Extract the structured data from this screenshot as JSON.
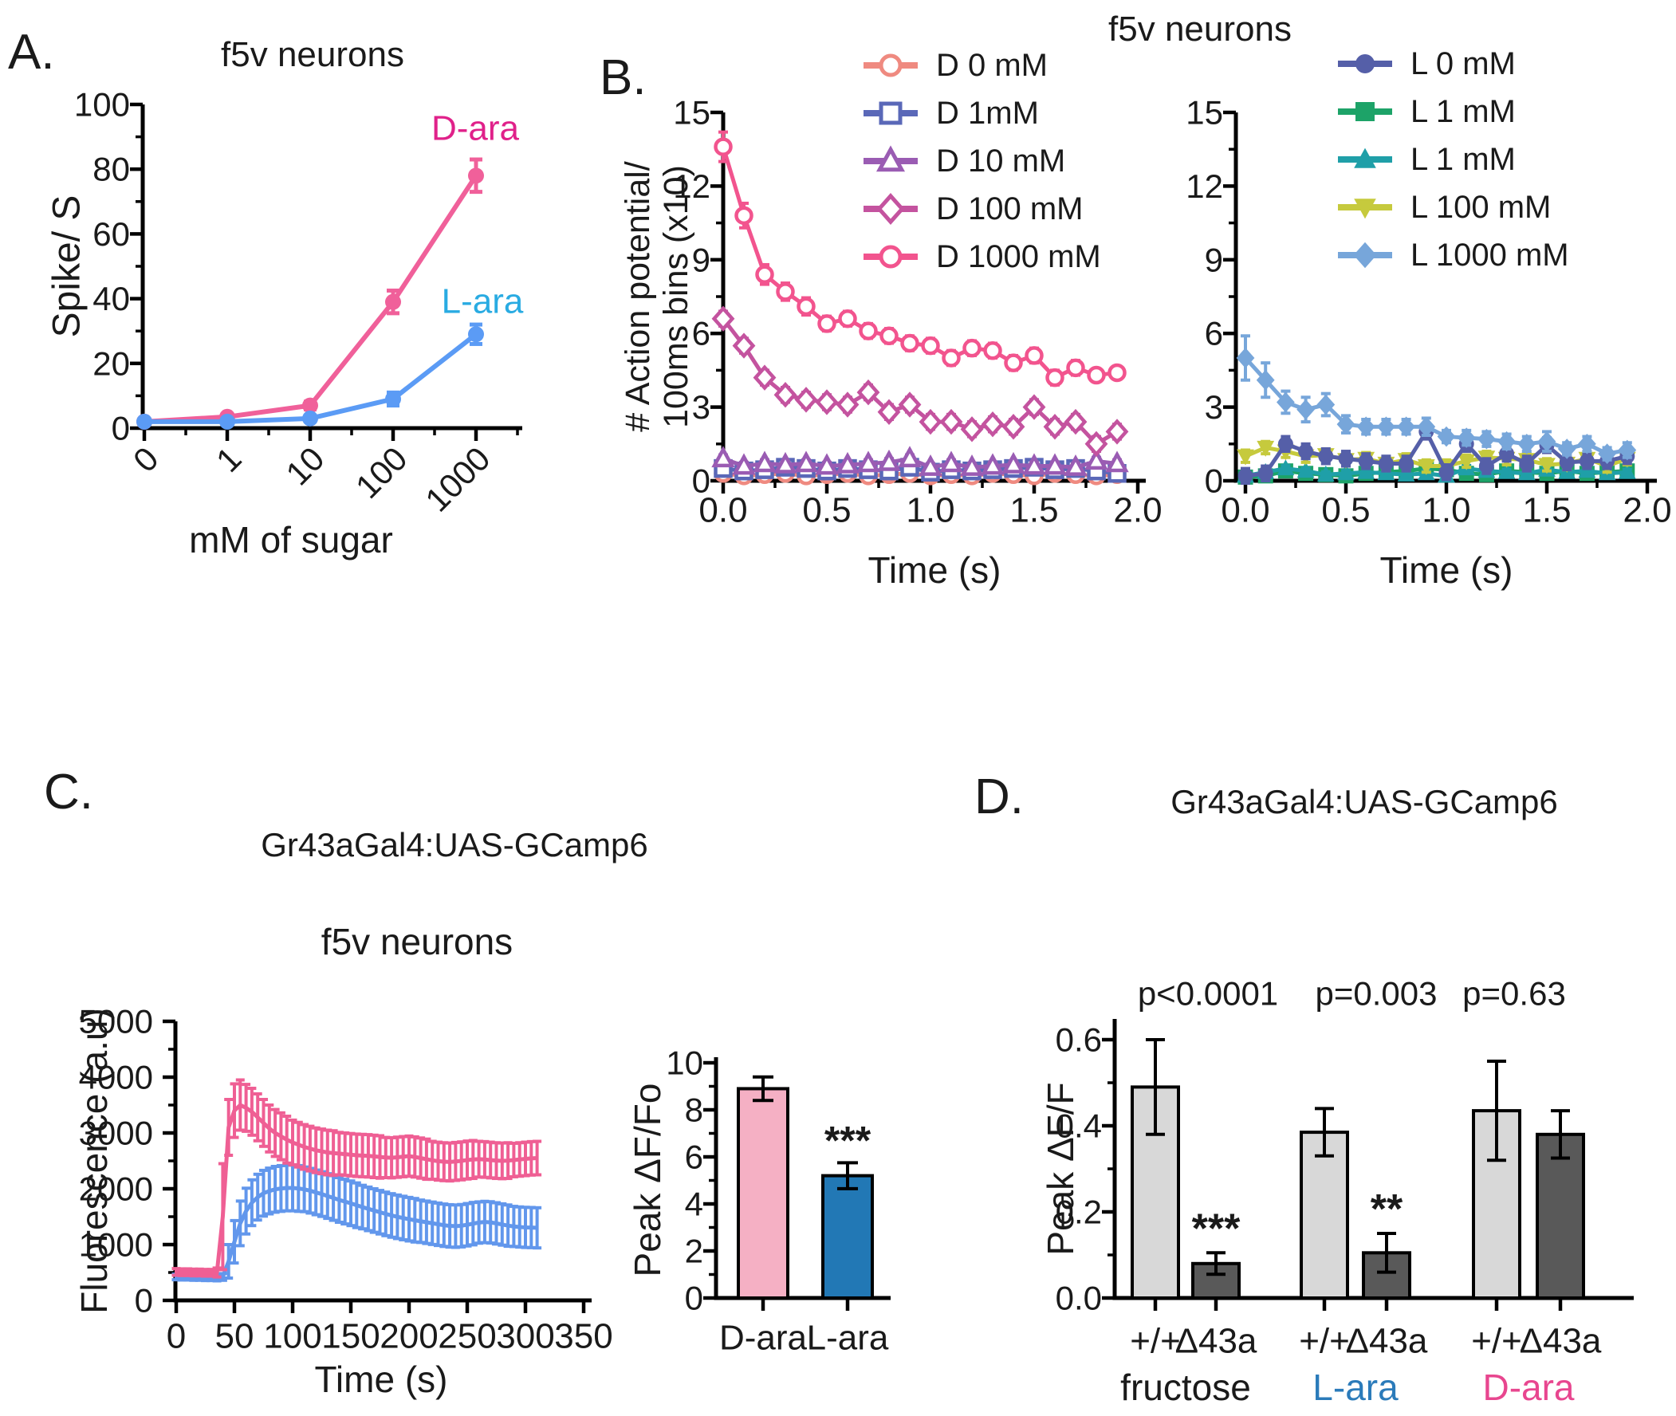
{
  "panels": {
    "A": {
      "label": "A.",
      "title": "f5v neurons"
    },
    "B": {
      "label": "B.",
      "title": "f5v neurons"
    },
    "C": {
      "label": "C.",
      "title": "Gr43aGal4:UAS-GCamp6",
      "subtitle": "f5v neurons"
    },
    "D": {
      "label": "D.",
      "title": "Gr43aGal4:UAS-GCamp6"
    }
  },
  "legends": {
    "b_d": [
      {
        "label": "D 0 mM",
        "color": "#ef8a80",
        "marker": "circle",
        "open": true
      },
      {
        "label": "D 1mM",
        "color": "#5a68b8",
        "marker": "square",
        "open": true
      },
      {
        "label": "D 10 mM",
        "color": "#9a5cb3",
        "marker": "triangle",
        "open": true
      },
      {
        "label": "D 100 mM",
        "color": "#c4539f",
        "marker": "diamond",
        "open": true
      },
      {
        "label": "D 1000 mM",
        "color": "#f2548e",
        "marker": "circle",
        "open": true
      }
    ],
    "b_l": [
      {
        "label": "L 0 mM",
        "color": "#555fa8",
        "marker": "circle",
        "open": false
      },
      {
        "label": "L 1 mM",
        "color": "#1da368",
        "marker": "square",
        "open": false
      },
      {
        "label": "L 1 mM",
        "color": "#1f9fa8",
        "marker": "triangle",
        "open": false
      },
      {
        "label": "L 100 mM",
        "color": "#c6ca3d",
        "marker": "triangle-down",
        "open": false
      },
      {
        "label": "L 1000 mM",
        "color": "#77a6da",
        "marker": "diamond",
        "open": false
      }
    ]
  },
  "chart_data": [
    {
      "id": "a_dose_response",
      "type": "line",
      "title": "f5v neurons",
      "xlabel": "mM of sugar",
      "ylabel": "Spike/ S",
      "categories": [
        "0",
        "1",
        "10",
        "100",
        "1000"
      ],
      "ylim": [
        0,
        100
      ],
      "yticks": [
        0,
        20,
        40,
        60,
        80,
        100
      ],
      "ytick_labels": [
        "0",
        "20",
        "40",
        "60",
        "80",
        "100"
      ],
      "x_start": 0,
      "x_step": 1,
      "annotations": [
        {
          "text": "D-ara",
          "color": "#e0218a"
        },
        {
          "text": "L-ara",
          "color": "#29abe2"
        }
      ],
      "series": [
        {
          "name": "D-ara",
          "color": "#f0609a",
          "marker": "circle",
          "open": false,
          "values": [
            2,
            3.5,
            7,
            39,
            78
          ],
          "errors": [
            0.5,
            0.8,
            1.2,
            3.5,
            5
          ]
        },
        {
          "name": "L-ara",
          "color": "#5b9bf5",
          "marker": "circle",
          "open": false,
          "values": [
            2,
            2,
            3,
            9,
            29
          ],
          "errors": [
            0.4,
            0.5,
            0.6,
            2,
            3
          ]
        }
      ]
    },
    {
      "id": "b_d_series",
      "type": "line",
      "xlabel": "Time (s)",
      "ylabel": "# Action potential/ 100ms bins (x10)",
      "ylabel_lines": [
        "# Action potential/",
        "100ms bins (x10)"
      ],
      "xlim": [
        0,
        2
      ],
      "ylim": [
        0,
        15
      ],
      "xticks": [
        0,
        0.5,
        1,
        1.5,
        2
      ],
      "xtick_labels": [
        "0.0",
        "0.5",
        "1.0",
        "1.5",
        "2.0"
      ],
      "yticks": [
        0,
        3,
        6,
        9,
        12,
        15
      ],
      "ytick_labels": [
        "0",
        "3",
        "6",
        "9",
        "12",
        "15"
      ],
      "x_start": 0,
      "x_step": 0.1,
      "series": [
        {
          "name": "D 0 mM",
          "color": "#ef8a80",
          "marker": "circle",
          "open": true,
          "values": [
            0.3,
            0.2,
            0.25,
            0.3,
            0.2,
            0.25,
            0.3,
            0.2,
            0.25,
            0.3,
            0.2,
            0.25,
            0.2,
            0.3,
            0.25,
            0.2,
            0.3,
            0.25,
            0.2,
            0.25
          ],
          "errors": 0.1
        },
        {
          "name": "D 1mM",
          "color": "#5a68b8",
          "marker": "square",
          "open": true,
          "values": [
            0.5,
            0.4,
            0.45,
            0.55,
            0.5,
            0.4,
            0.5,
            0.45,
            0.4,
            0.55,
            0.35,
            0.45,
            0.4,
            0.45,
            0.5,
            0.55,
            0.45,
            0.5,
            0.4,
            0.3
          ],
          "errors": 0.12
        },
        {
          "name": "D 10 mM",
          "color": "#9a5cb3",
          "marker": "triangle",
          "open": true,
          "values": [
            0.9,
            0.6,
            0.7,
            0.65,
            0.7,
            0.6,
            0.65,
            0.7,
            0.75,
            0.9,
            0.55,
            0.7,
            0.55,
            0.6,
            0.65,
            0.6,
            0.6,
            0.55,
            0.8,
            0.7
          ],
          "errors": 0.15
        },
        {
          "name": "D 100 mM",
          "color": "#c4539f",
          "marker": "diamond",
          "open": true,
          "values": [
            6.6,
            5.5,
            4.2,
            3.5,
            3.3,
            3.2,
            3.1,
            3.6,
            2.8,
            3.1,
            2.4,
            2.4,
            2.1,
            2.3,
            2.2,
            3.0,
            2.2,
            2.4,
            1.5,
            2.0
          ],
          "errors": 0.3
        },
        {
          "name": "D 1000 mM",
          "color": "#f2548e",
          "marker": "circle",
          "open": true,
          "values": [
            13.6,
            10.8,
            8.4,
            7.7,
            7.1,
            6.4,
            6.6,
            6.1,
            5.9,
            5.6,
            5.5,
            5.0,
            5.4,
            5.3,
            4.8,
            5.1,
            4.2,
            4.6,
            4.3,
            4.4
          ],
          "errors": [
            0.6,
            0.5,
            0.4,
            0.35,
            0.35,
            0.3,
            0.3,
            0.3,
            0.3,
            0.3,
            0.3,
            0.3,
            0.3,
            0.3,
            0.3,
            0.3,
            0.3,
            0.3,
            0.25,
            0.25
          ]
        }
      ]
    },
    {
      "id": "b_l_series",
      "type": "line",
      "xlabel": "Time (s)",
      "ylabel": "",
      "xlim": [
        0,
        2
      ],
      "ylim": [
        0,
        15
      ],
      "xticks": [
        0,
        0.5,
        1,
        1.5,
        2
      ],
      "xtick_labels": [
        "0.0",
        "0.5",
        "1.0",
        "1.5",
        "2.0"
      ],
      "yticks": [
        0,
        3,
        6,
        9,
        12,
        15
      ],
      "ytick_labels": [
        "0",
        "3",
        "6",
        "9",
        "12",
        "15"
      ],
      "x_start": 0,
      "x_step": 0.1,
      "series": [
        {
          "name": "L 1 mM",
          "color": "#1da368",
          "marker": "square",
          "open": false,
          "values": [
            0.15,
            0.2,
            0.4,
            0.3,
            0.25,
            0.2,
            0.3,
            0.35,
            0.4,
            0.5,
            0.45,
            0.3,
            0.25,
            0.4,
            0.35,
            0.3,
            0.4,
            0.3,
            0.35,
            0.4
          ],
          "errors": 0.12
        },
        {
          "name": "L 1 mM (teal)",
          "color": "#1f9fa8",
          "marker": "triangle",
          "open": false,
          "values": [
            0.2,
            0.35,
            0.5,
            0.4,
            0.25,
            0.3,
            0.35,
            0.3,
            0.25,
            0.3,
            0.2,
            0.5,
            0.4,
            0.35,
            0.3,
            0.45,
            0.35,
            0.4,
            0.3,
            0.35
          ],
          "errors": 0.12
        },
        {
          "name": "L 100 mM",
          "color": "#c6ca3d",
          "marker": "triangle-down",
          "open": false,
          "values": [
            1.0,
            1.35,
            1.2,
            1.0,
            1.05,
            0.85,
            0.9,
            0.7,
            0.85,
            0.6,
            0.6,
            0.8,
            0.95,
            0.9,
            0.85,
            0.65,
            0.7,
            0.9,
            0.6,
            0.9
          ],
          "errors": 0.25
        },
        {
          "name": "L 0 mM",
          "color": "#555fa8",
          "marker": "circle",
          "open": false,
          "values": [
            0.2,
            0.3,
            1.5,
            1.2,
            1.0,
            0.9,
            0.8,
            0.7,
            0.7,
            2.0,
            0.35,
            1.5,
            0.6,
            1.1,
            0.7,
            1.45,
            0.75,
            0.8,
            0.8,
            1.0
          ],
          "errors": 0.3
        },
        {
          "name": "L 1000 mM",
          "color": "#77a6da",
          "marker": "diamond",
          "open": false,
          "values": [
            5.0,
            4.1,
            3.2,
            2.9,
            3.1,
            2.3,
            2.2,
            2.2,
            2.2,
            2.2,
            1.8,
            1.75,
            1.7,
            1.6,
            1.5,
            1.6,
            1.3,
            1.5,
            1.1,
            1.25
          ],
          "errors": [
            0.9,
            0.7,
            0.45,
            0.5,
            0.45,
            0.35,
            0.3,
            0.3,
            0.3,
            0.35,
            0.25,
            0.3,
            0.3,
            0.3,
            0.3,
            0.4,
            0.25,
            0.3,
            0.25,
            0.3
          ]
        }
      ]
    },
    {
      "id": "c_trace",
      "type": "line",
      "title": "f5v neurons",
      "xlabel": "Time (s)",
      "ylabel": "Fluorescence (a.u)",
      "xlim": [
        0,
        350
      ],
      "ylim": [
        0,
        5000
      ],
      "xticks": [
        0,
        50,
        100,
        150,
        200,
        250,
        300,
        350
      ],
      "xtick_labels": [
        "0",
        "50",
        "100",
        "150",
        "200",
        "250",
        "300",
        "350"
      ],
      "yticks": [
        0,
        1000,
        2000,
        3000,
        4000,
        5000
      ],
      "ytick_labels": [
        "0",
        "1000",
        "2000",
        "3000",
        "4000",
        "5000"
      ],
      "x_start": 0,
      "x_step": 5,
      "series": [
        {
          "name": "L-ara",
          "color": "#6297ec",
          "marker": "none",
          "open": false,
          "values": [
            420,
            415,
            415,
            410,
            410,
            405,
            405,
            400,
            420,
            700,
            1050,
            1380,
            1600,
            1750,
            1850,
            1920,
            1960,
            1990,
            2005,
            2015,
            2015,
            2005,
            1990,
            1965,
            1935,
            1905,
            1870,
            1835,
            1800,
            1770,
            1740,
            1705,
            1672,
            1640,
            1610,
            1580,
            1550,
            1522,
            1498,
            1476,
            1455,
            1436,
            1418,
            1400,
            1382,
            1364,
            1347,
            1335,
            1330,
            1338,
            1355,
            1375,
            1395,
            1405,
            1398,
            1380,
            1360,
            1340,
            1325,
            1315,
            1308,
            1305,
            1300
          ],
          "errors": [
            50,
            50,
            50,
            50,
            50,
            50,
            50,
            50,
            60,
            300,
            380,
            400,
            410,
            410,
            410,
            410,
            410,
            410,
            410,
            410,
            410,
            410,
            400,
            400,
            400,
            400,
            400,
            400,
            400,
            400,
            400,
            400,
            390,
            390,
            390,
            390,
            390,
            390,
            390,
            390,
            390,
            390,
            380,
            380,
            380,
            380,
            380,
            380,
            380,
            380,
            380,
            380,
            370,
            370,
            370,
            370,
            370,
            370,
            360,
            360,
            360,
            360,
            360
          ]
        },
        {
          "name": "D-ara",
          "color": "#ef5f94",
          "marker": "none",
          "open": false,
          "values": [
            510,
            505,
            505,
            500,
            500,
            495,
            495,
            500,
            1500,
            3100,
            3400,
            3500,
            3450,
            3380,
            3280,
            3180,
            3080,
            3000,
            2940,
            2880,
            2830,
            2790,
            2750,
            2720,
            2690,
            2670,
            2650,
            2640,
            2630,
            2620,
            2610,
            2600,
            2595,
            2590,
            2580,
            2570,
            2560,
            2555,
            2565,
            2575,
            2585,
            2570,
            2550,
            2530,
            2510,
            2495,
            2485,
            2480,
            2490,
            2500,
            2515,
            2525,
            2530,
            2525,
            2515,
            2505,
            2500,
            2505,
            2515,
            2525,
            2535,
            2545,
            2550
          ],
          "errors": [
            60,
            60,
            60,
            60,
            60,
            60,
            60,
            80,
            950,
            500,
            480,
            450,
            420,
            420,
            420,
            420,
            420,
            420,
            420,
            420,
            400,
            400,
            400,
            400,
            400,
            400,
            400,
            400,
            380,
            380,
            380,
            380,
            380,
            380,
            380,
            380,
            360,
            360,
            360,
            360,
            360,
            360,
            360,
            360,
            340,
            340,
            340,
            340,
            340,
            340,
            340,
            340,
            320,
            320,
            320,
            320,
            320,
            320,
            300,
            300,
            300,
            300,
            300
          ]
        }
      ]
    },
    {
      "id": "c_peak_bar",
      "type": "bar",
      "ylabel": "Peak ΔF/Fo",
      "ylim": [
        0,
        10
      ],
      "yticks": [
        0,
        2,
        4,
        6,
        8,
        10
      ],
      "ytick_labels": [
        "0",
        "2",
        "4",
        "6",
        "8",
        "10"
      ],
      "bars": [
        {
          "label": "D-ara",
          "value": 8.9,
          "error": 0.5,
          "color": "#f5b0c4",
          "sig": ""
        },
        {
          "label": "L-ara",
          "value": 5.2,
          "error": 0.55,
          "color": "#2278b5",
          "sig": "***"
        }
      ]
    },
    {
      "id": "d_genotype_bar",
      "type": "grouped_bar",
      "ylabel": "Peak ΔF/F",
      "ylim": [
        0,
        0.6
      ],
      "yticks": [
        0,
        0.2,
        0.4,
        0.6
      ],
      "ytick_labels": [
        "0.0",
        "0.2",
        "0.4",
        "0.6"
      ],
      "bar_colors": {
        "+/+": "#d8d8d8",
        "Δ43a": "#595959"
      },
      "groups": [
        {
          "label": "fructose",
          "label_color": "#1a1a1a",
          "p": "p<0.0001",
          "bars": [
            {
              "label": "+/+",
              "value": 0.49,
              "error": 0.11,
              "sig": ""
            },
            {
              "label": "Δ43a",
              "value": 0.08,
              "error": 0.025,
              "sig": "***"
            }
          ]
        },
        {
          "label": "L-ara",
          "label_color": "#2b7bba",
          "p": "p=0.003",
          "bars": [
            {
              "label": "+/+",
              "value": 0.385,
              "error": 0.055,
              "sig": ""
            },
            {
              "label": "Δ43a",
              "value": 0.105,
              "error": 0.045,
              "sig": "**"
            }
          ]
        },
        {
          "label": "D-ara",
          "label_color": "#e8468f",
          "p": "p=0.63",
          "bars": [
            {
              "label": "+/+",
              "value": 0.435,
              "error": 0.115,
              "sig": ""
            },
            {
              "label": "Δ43a",
              "value": 0.38,
              "error": 0.055,
              "sig": ""
            }
          ]
        }
      ]
    }
  ]
}
